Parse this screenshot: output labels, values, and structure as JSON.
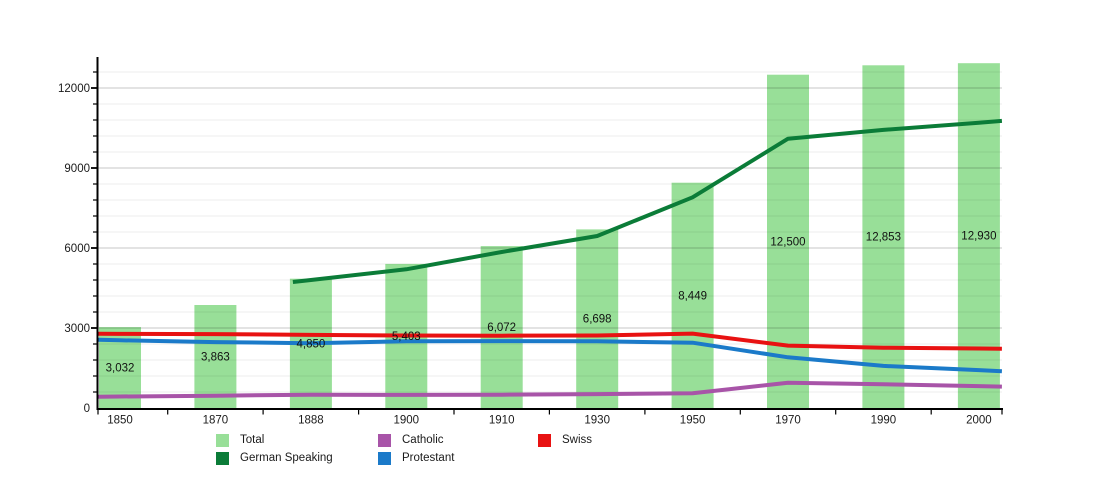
{
  "chart_data": {
    "type": "bar",
    "title": "",
    "xlabel": "",
    "ylabel": "",
    "categories": [
      "1850",
      "1870",
      "1888",
      "1900",
      "1910",
      "1930",
      "1950",
      "1970",
      "1990",
      "2000"
    ],
    "bars": {
      "name": "Total",
      "color": "#98df98",
      "values": [
        3032,
        3863,
        4850,
        5403,
        6072,
        6698,
        8449,
        12500,
        12853,
        12930
      ],
      "labels": [
        "3,032",
        "3,863",
        "4,850",
        "5,403",
        "6,072",
        "6,698",
        "8,449",
        "12,500",
        "12,853",
        "12,930"
      ]
    },
    "lines": [
      {
        "name": "German Speaking",
        "color": "#0b7c38",
        "values": [
          null,
          null,
          4800,
          5200,
          5850,
          6450,
          7900,
          10100,
          10430,
          10700
        ]
      },
      {
        "name": "Catholic",
        "color": "#a854a8",
        "values": [
          430,
          460,
          500,
          490,
          500,
          520,
          550,
          950,
          890,
          820
        ]
      },
      {
        "name": "Protestant",
        "color": "#1b7ac9",
        "values": [
          2540,
          2470,
          2430,
          2500,
          2510,
          2500,
          2450,
          1900,
          1580,
          1420
        ]
      },
      {
        "name": "Swiss",
        "color": "#e81212",
        "values": [
          2780,
          2770,
          2740,
          2720,
          2710,
          2720,
          2790,
          2340,
          2260,
          2230
        ]
      }
    ],
    "y_axis": {
      "min": 0,
      "max": 13200,
      "major_ticks": [
        0,
        3000,
        6000,
        9000,
        12000
      ],
      "major_labels": [
        "0",
        "3000",
        "6000",
        "9000",
        "12000"
      ],
      "minor_step": 600,
      "grid_minor_step": 600
    },
    "grid": true,
    "legend": {
      "position": "bottom",
      "entries": [
        {
          "label": "Total",
          "color": "#98df98",
          "type": "bar"
        },
        {
          "label": "Catholic",
          "color": "#a854a8",
          "type": "line"
        },
        {
          "label": "Swiss",
          "color": "#e81212",
          "type": "line"
        },
        {
          "label": "German Speaking",
          "color": "#0b7c38",
          "type": "line"
        },
        {
          "label": "Protestant",
          "color": "#1b7ac9",
          "type": "line"
        }
      ]
    }
  }
}
